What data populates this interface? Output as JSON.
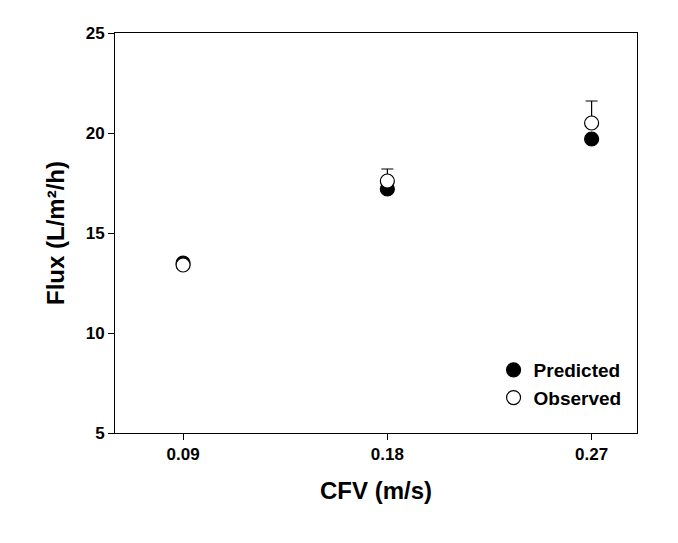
{
  "chart_data": {
    "type": "scatter",
    "x_label": "CFV (m/s)",
    "y_label": "Flux (L/m²/h)",
    "x": [
      0.09,
      0.18,
      0.27
    ],
    "series": [
      {
        "name": "Predicted",
        "color": "#000000",
        "marker": "filled",
        "values": [
          13.5,
          17.2,
          19.7
        ]
      },
      {
        "name": "Observed",
        "color": "#000000",
        "marker": "open",
        "values": [
          13.4,
          17.6,
          20.5
        ],
        "errors": [
          0.1,
          0.6,
          1.1
        ]
      }
    ],
    "xlim": [
      0.06,
      0.29
    ],
    "xticks": [
      0.09,
      0.18,
      0.27
    ],
    "ylim": [
      5,
      25
    ],
    "yticks": [
      5,
      10,
      15,
      20,
      25
    ],
    "grid": false,
    "legend": "lower right"
  }
}
